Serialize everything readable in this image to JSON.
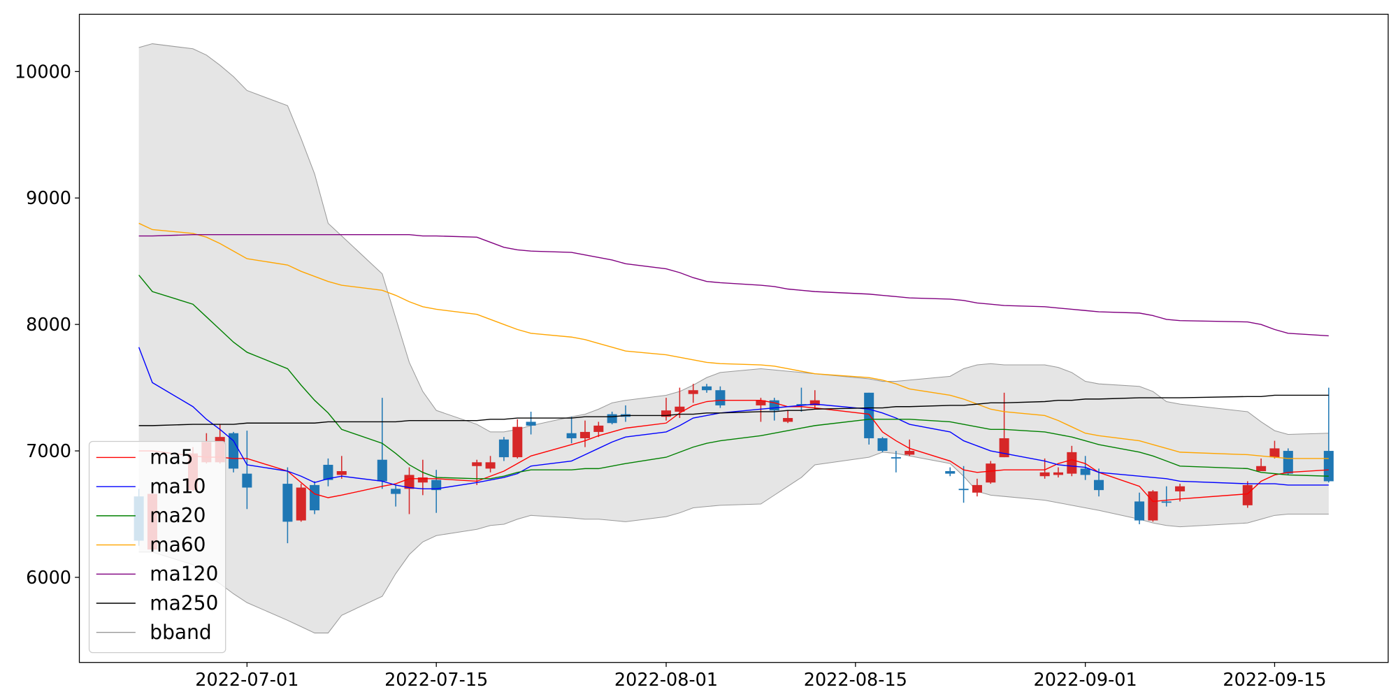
{
  "chart_data": {
    "type": "candlestick",
    "x": [
      "2022-06-23",
      "2022-06-24",
      "2022-06-27",
      "2022-06-28",
      "2022-06-29",
      "2022-06-30",
      "2022-07-01",
      "2022-07-04",
      "2022-07-05",
      "2022-07-06",
      "2022-07-07",
      "2022-07-08",
      "2022-07-11",
      "2022-07-12",
      "2022-07-13",
      "2022-07-14",
      "2022-07-15",
      "2022-07-18",
      "2022-07-19",
      "2022-07-20",
      "2022-07-21",
      "2022-07-22",
      "2022-07-25",
      "2022-07-26",
      "2022-07-27",
      "2022-07-28",
      "2022-07-29",
      "2022-08-01",
      "2022-08-02",
      "2022-08-03",
      "2022-08-04",
      "2022-08-05",
      "2022-08-08",
      "2022-08-09",
      "2022-08-10",
      "2022-08-11",
      "2022-08-12",
      "2022-08-16",
      "2022-08-17",
      "2022-08-18",
      "2022-08-19",
      "2022-08-22",
      "2022-08-23",
      "2022-08-24",
      "2022-08-25",
      "2022-08-26",
      "2022-08-29",
      "2022-08-30",
      "2022-08-31",
      "2022-09-01",
      "2022-09-02",
      "2022-09-05",
      "2022-09-06",
      "2022-09-07",
      "2022-09-08",
      "2022-09-13",
      "2022-09-14",
      "2022-09-15",
      "2022-09-16",
      "2022-09-19"
    ],
    "open": [
      6640,
      6220,
      6690,
      6910,
      6910,
      7140,
      6820,
      6740,
      6450,
      6730,
      6890,
      6810,
      6930,
      6700,
      6700,
      6750,
      6770,
      6880,
      6860,
      7090,
      6950,
      7230,
      7140,
      7100,
      7150,
      7290,
      7290,
      7270,
      7310,
      7450,
      7510,
      7480,
      7360,
      7400,
      7230,
      7370,
      7360,
      7460,
      7100,
      6950,
      6970,
      6840,
      6700,
      6670,
      6750,
      6950,
      6800,
      6810,
      6820,
      6860,
      6770,
      6600,
      6450,
      6600,
      6680,
      6570,
      6840,
      6950,
      7000,
      7000
    ],
    "high": [
      6700,
      6680,
      7030,
      7140,
      7210,
      7150,
      7160,
      6870,
      6740,
      6760,
      6940,
      6960,
      7420,
      6730,
      6870,
      6930,
      6850,
      6930,
      6960,
      7110,
      7250,
      7310,
      7270,
      7240,
      7230,
      7310,
      7360,
      7420,
      7500,
      7530,
      7530,
      7510,
      7420,
      7420,
      7320,
      7500,
      7480,
      7460,
      7110,
      7000,
      7090,
      6870,
      6880,
      6780,
      6920,
      7460,
      6940,
      6870,
      7040,
      6960,
      6860,
      6670,
      6690,
      6720,
      6740,
      6760,
      6940,
      7080,
      7020,
      7500
    ],
    "low": [
      6250,
      6200,
      6680,
      6900,
      6900,
      6830,
      6540,
      6270,
      6440,
      6500,
      6720,
      6780,
      6700,
      6560,
      6500,
      6650,
      6510,
      6730,
      6830,
      6920,
      6940,
      7130,
      7060,
      7030,
      7110,
      7210,
      7230,
      7240,
      7260,
      7380,
      7460,
      7340,
      7230,
      7240,
      7220,
      7310,
      7330,
      7050,
      6990,
      6830,
      6960,
      6800,
      6590,
      6640,
      6740,
      6950,
      6780,
      6790,
      6800,
      6770,
      6640,
      6420,
      6440,
      6560,
      6600,
      6550,
      6840,
      6940,
      6810,
      6750
    ],
    "close": [
      6290,
      6660,
      6980,
      7070,
      7110,
      6860,
      6710,
      6440,
      6710,
      6530,
      6770,
      6840,
      6760,
      6660,
      6810,
      6790,
      6690,
      6910,
      6910,
      6950,
      7190,
      7200,
      7100,
      7150,
      7200,
      7220,
      7270,
      7320,
      7350,
      7480,
      7480,
      7360,
      7400,
      7320,
      7260,
      7360,
      7400,
      7100,
      7000,
      6940,
      7000,
      6820,
      6690,
      6730,
      6900,
      7100,
      6830,
      6830,
      6990,
      6810,
      6690,
      6450,
      6680,
      6590,
      6720,
      6730,
      6880,
      7020,
      6820,
      6760
    ],
    "up_color": "#d62728",
    "down_color": "#1f77b4",
    "series": [
      {
        "name": "ma5",
        "color": "#ff0000",
        "values": [
          7000,
          7000,
          6960,
          6950,
          6950,
          6940,
          6940,
          6840,
          6750,
          6660,
          6630,
          6650,
          6720,
          6740,
          6780,
          6780,
          6780,
          6760,
          6800,
          6840,
          6900,
          6960,
          7050,
          7080,
          7120,
          7150,
          7180,
          7220,
          7300,
          7360,
          7390,
          7400,
          7400,
          7380,
          7350,
          7350,
          7340,
          7290,
          7150,
          7080,
          7020,
          6920,
          6850,
          6830,
          6840,
          6850,
          6850,
          6900,
          6930,
          6900,
          6830,
          6720,
          6600,
          6610,
          6620,
          6660,
          6760,
          6810,
          6830,
          6850
        ]
      },
      {
        "name": "ma10",
        "color": "#0000ff",
        "values": [
          7820,
          7540,
          7350,
          7250,
          7170,
          7080,
          6890,
          6840,
          6800,
          6750,
          6780,
          6800,
          6760,
          6730,
          6710,
          6700,
          6700,
          6750,
          6770,
          6790,
          6820,
          6880,
          6920,
          6970,
          7020,
          7070,
          7110,
          7150,
          7200,
          7260,
          7280,
          7300,
          7330,
          7340,
          7350,
          7360,
          7370,
          7330,
          7300,
          7260,
          7210,
          7150,
          7080,
          7040,
          7000,
          6980,
          6920,
          6890,
          6880,
          6870,
          6830,
          6800,
          6790,
          6780,
          6760,
          6740,
          6740,
          6740,
          6730,
          6730
        ]
      },
      {
        "name": "ma20",
        "color": "#008000",
        "values": [
          8390,
          8260,
          8160,
          8060,
          7960,
          7860,
          7780,
          7650,
          7520,
          7400,
          7300,
          7170,
          7060,
          6980,
          6890,
          6830,
          6790,
          6780,
          6780,
          6800,
          6830,
          6850,
          6850,
          6860,
          6860,
          6880,
          6900,
          6950,
          6990,
          7030,
          7060,
          7080,
          7120,
          7140,
          7160,
          7180,
          7200,
          7250,
          7250,
          7250,
          7250,
          7230,
          7210,
          7190,
          7170,
          7170,
          7150,
          7130,
          7110,
          7080,
          7050,
          6990,
          6960,
          6920,
          6880,
          6860,
          6830,
          6820,
          6810,
          6800
        ]
      },
      {
        "name": "ma60",
        "color": "#ffa500",
        "values": [
          8800,
          8750,
          8720,
          8690,
          8640,
          8580,
          8520,
          8470,
          8420,
          8380,
          8340,
          8310,
          8270,
          8230,
          8180,
          8140,
          8120,
          8080,
          8040,
          8000,
          7960,
          7930,
          7900,
          7880,
          7850,
          7820,
          7790,
          7760,
          7740,
          7720,
          7700,
          7690,
          7680,
          7670,
          7650,
          7630,
          7610,
          7580,
          7560,
          7530,
          7490,
          7440,
          7410,
          7370,
          7330,
          7310,
          7280,
          7240,
          7190,
          7140,
          7120,
          7080,
          7050,
          7020,
          6990,
          6970,
          6960,
          6950,
          6940,
          6940
        ]
      },
      {
        "name": "ma120",
        "color": "#800080",
        "values": [
          8700,
          8700,
          8710,
          8710,
          8710,
          8710,
          8710,
          8710,
          8710,
          8710,
          8710,
          8710,
          8710,
          8710,
          8710,
          8700,
          8700,
          8690,
          8650,
          8610,
          8590,
          8580,
          8570,
          8550,
          8530,
          8510,
          8480,
          8440,
          8410,
          8370,
          8340,
          8330,
          8310,
          8300,
          8280,
          8270,
          8260,
          8240,
          8230,
          8220,
          8210,
          8200,
          8190,
          8170,
          8160,
          8150,
          8140,
          8130,
          8120,
          8110,
          8100,
          8090,
          8070,
          8040,
          8030,
          8020,
          8000,
          7960,
          7930,
          7910
        ]
      },
      {
        "name": "ma250",
        "color": "#000000",
        "values": [
          7200,
          7200,
          7210,
          7210,
          7210,
          7210,
          7220,
          7220,
          7220,
          7220,
          7230,
          7230,
          7230,
          7230,
          7240,
          7240,
          7240,
          7240,
          7250,
          7250,
          7260,
          7260,
          7260,
          7270,
          7270,
          7270,
          7280,
          7280,
          7290,
          7290,
          7300,
          7300,
          7310,
          7310,
          7320,
          7320,
          7330,
          7340,
          7340,
          7350,
          7350,
          7360,
          7360,
          7370,
          7380,
          7380,
          7390,
          7400,
          7400,
          7410,
          7410,
          7420,
          7420,
          7420,
          7420,
          7430,
          7430,
          7440,
          7440,
          7440
        ]
      }
    ],
    "band": {
      "name": "bband",
      "color": "#999999",
      "fill": "#e5e5e5",
      "upper": [
        10190,
        10220,
        10180,
        10130,
        10050,
        9960,
        9850,
        9730,
        9470,
        9190,
        8800,
        8700,
        8400,
        8050,
        7700,
        7470,
        7320,
        7210,
        7150,
        7150,
        7170,
        7200,
        7270,
        7290,
        7330,
        7380,
        7400,
        7440,
        7470,
        7520,
        7580,
        7620,
        7650,
        7640,
        7630,
        7620,
        7610,
        7570,
        7550,
        7550,
        7560,
        7590,
        7650,
        7680,
        7690,
        7680,
        7680,
        7660,
        7620,
        7550,
        7530,
        7510,
        7470,
        7390,
        7370,
        7310,
        7230,
        7160,
        7130,
        7140
      ],
      "lower": [
        6200,
        6200,
        6100,
        6020,
        5950,
        5870,
        5800,
        5660,
        5610,
        5560,
        5560,
        5700,
        5850,
        6030,
        6180,
        6280,
        6330,
        6380,
        6410,
        6420,
        6460,
        6490,
        6470,
        6460,
        6460,
        6450,
        6440,
        6480,
        6510,
        6550,
        6560,
        6570,
        6580,
        6650,
        6720,
        6790,
        6890,
        6950,
        6990,
        6980,
        6960,
        6900,
        6800,
        6680,
        6650,
        6640,
        6610,
        6590,
        6570,
        6550,
        6530,
        6460,
        6430,
        6410,
        6400,
        6430,
        6460,
        6490,
        6500,
        6500
      ]
    },
    "xlim": [
      "2022-06-18 14:24",
      "2022-09-23 09:36"
    ],
    "xticks": [
      "2022-07-01",
      "2022-07-15",
      "2022-08-01",
      "2022-08-15",
      "2022-09-01",
      "2022-09-15"
    ],
    "ylim": [
      5327,
      10453
    ],
    "yticks": [
      6000,
      7000,
      8000,
      9000,
      10000
    ],
    "legend": "lower left"
  }
}
